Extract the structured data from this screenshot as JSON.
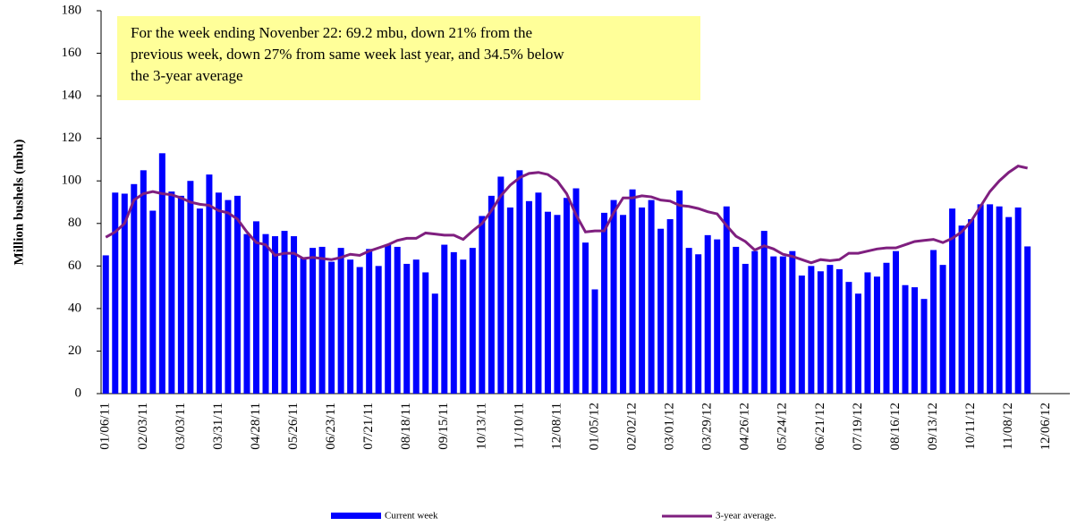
{
  "chart_data": {
    "type": "bar",
    "y_label": "Million bushels  (mbu)",
    "annotation": [
      "For the week ending Novenber 22:  69.2 mbu, down 21%  from the",
      "previous week,  down 27%  from same week last year, and 34.5%  below",
      "the 3-year average"
    ],
    "categories": [
      "01/06/11",
      null,
      null,
      null,
      "02/03/11",
      null,
      null,
      null,
      "03/03/11",
      null,
      null,
      null,
      "03/31/11",
      null,
      null,
      null,
      "04/28/11",
      null,
      null,
      null,
      "05/26/11",
      null,
      null,
      null,
      "06/23/11",
      null,
      null,
      null,
      "07/21/11",
      null,
      null,
      null,
      "08/18/11",
      null,
      null,
      null,
      "09/15/11",
      null,
      null,
      null,
      "10/13/11",
      null,
      null,
      null,
      "11/10/11",
      null,
      null,
      null,
      "12/08/11",
      null,
      null,
      null,
      "01/05/12",
      null,
      null,
      null,
      "02/02/12",
      null,
      null,
      null,
      "03/01/12",
      null,
      null,
      null,
      "03/29/12",
      null,
      null,
      null,
      "04/26/12",
      null,
      null,
      null,
      "05/24/12",
      null,
      null,
      null,
      "06/21/12",
      null,
      null,
      null,
      "07/19/12",
      null,
      null,
      null,
      "08/16/12",
      null,
      null,
      null,
      "09/13/12",
      null,
      null,
      null,
      "10/11/12",
      null,
      null,
      null,
      "11/08/12",
      null,
      null,
      null,
      "12/06/12",
      null,
      null
    ],
    "series": [
      {
        "name": "Current week",
        "type": "bar",
        "color": "#0000ff",
        "values": [
          65,
          94.5,
          94,
          98.5,
          105,
          86,
          113,
          95,
          93,
          100,
          87,
          103,
          94.5,
          91,
          93,
          75,
          81,
          75,
          74,
          76.5,
          74,
          64,
          68.5,
          69,
          62,
          68.5,
          63,
          59.5,
          68,
          60,
          70,
          69,
          61,
          63,
          57,
          47,
          70,
          66.5,
          63,
          68.5,
          83.5,
          93,
          102,
          87.5,
          105,
          90.5,
          94.5,
          85.5,
          84,
          92,
          96.5,
          71,
          49,
          85,
          91,
          84,
          96,
          87.5,
          91,
          77.5,
          82,
          95.5,
          68.5,
          65.5,
          74.5,
          72.5,
          88,
          69,
          61,
          67,
          76.5,
          64.5,
          64.5,
          67,
          55.5,
          60,
          57.5,
          60.5,
          58.5,
          52.5,
          47,
          57,
          55,
          61.5,
          67,
          51,
          50,
          44.5,
          67.5,
          60.5,
          87,
          79,
          82,
          89,
          89,
          88,
          83,
          87.5,
          69.2,
          null,
          null,
          null,
          null
        ]
      },
      {
        "name": "3-year average.",
        "type": "line",
        "color": "#7f1f7f",
        "values": [
          73.5,
          76,
          80,
          91,
          94,
          95,
          94,
          93.5,
          92,
          90,
          89,
          88.5,
          86,
          85,
          82,
          76,
          71,
          70,
          65,
          66,
          66,
          63.5,
          64,
          63.5,
          63,
          64,
          65.5,
          65,
          67,
          68.5,
          70,
          72,
          73,
          73,
          75.5,
          75,
          74.5,
          74.5,
          72.5,
          76.5,
          80,
          86,
          93,
          98,
          101.5,
          103.5,
          104,
          103,
          100,
          94,
          84,
          76,
          76.5,
          76.5,
          85,
          92,
          92,
          93,
          92.5,
          91,
          90.5,
          88.5,
          88,
          87,
          85.5,
          84.5,
          79,
          74,
          71.5,
          67.5,
          69.5,
          68,
          65.5,
          64.5,
          63,
          61.5,
          63,
          62.5,
          63,
          66,
          66,
          67,
          68,
          68.5,
          68.5,
          70,
          71.5,
          72,
          72.5,
          71,
          73,
          76,
          81,
          88,
          95,
          100,
          104,
          107,
          106,
          null,
          null,
          null,
          null
        ]
      }
    ],
    "ylim": [
      0,
      180
    ],
    "yticks": [
      0,
      20,
      40,
      60,
      80,
      100,
      120,
      140,
      160,
      180
    ],
    "annotation_color": "#ffff99"
  }
}
